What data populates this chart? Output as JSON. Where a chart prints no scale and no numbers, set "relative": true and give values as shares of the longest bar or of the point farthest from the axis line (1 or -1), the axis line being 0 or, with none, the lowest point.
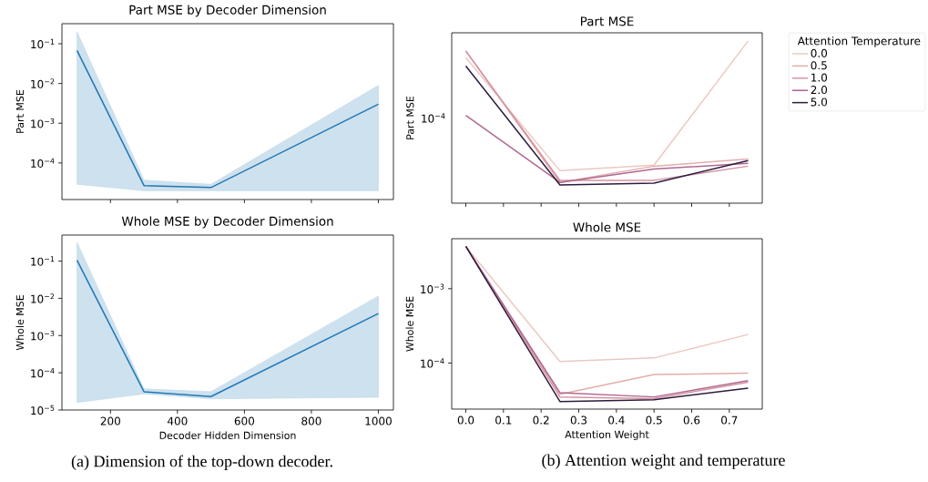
{
  "chart_data": [
    {
      "type": "line",
      "title": "Part MSE by Decoder Dimension",
      "ylabel": "Part MSE",
      "x": [
        100,
        300,
        500,
        1000
      ],
      "xlim": [
        55,
        1045
      ],
      "xticks": [
        200,
        400,
        600,
        800,
        1000
      ],
      "log": "y",
      "ylim": [
        1.2e-05,
        0.32
      ],
      "yticks": [
        {
          "value": 0.1,
          "label": "10$^{−1}$"
        },
        {
          "value": 0.01,
          "label": "10$^{−2}$"
        },
        {
          "value": 0.001,
          "label": "10$^{−3}$"
        },
        {
          "value": 0.0001,
          "label": "10$^{−4}$"
        }
      ],
      "tick_labels": "y",
      "series": [
        {
          "color": "#1f77b4",
          "values": [
            0.068,
            2.7e-05,
            2.4e-05,
            0.003
          ],
          "lower": [
            2.9e-05,
            2e-05,
            2e-05,
            2e-05
          ],
          "upper": [
            0.2,
            3.7e-05,
            2.9e-05,
            0.0089
          ]
        }
      ]
    },
    {
      "type": "line",
      "title": "Whole MSE by Decoder Dimension",
      "xlabel": "Decoder Hidden Dimension",
      "ylabel": "Whole MSE",
      "x": [
        100,
        300,
        500,
        1000
      ],
      "xlim": [
        55,
        1045
      ],
      "xticks": [
        200,
        400,
        600,
        800,
        1000
      ],
      "log": "y",
      "ylim": [
        1e-05,
        0.5
      ],
      "yticks": [
        {
          "value": 0.1,
          "label": "10$^{−1}$"
        },
        {
          "value": 0.01,
          "label": "10$^{−2}$"
        },
        {
          "value": 0.001,
          "label": "10$^{−3}$"
        },
        {
          "value": 0.0001,
          "label": "10$^{−4}$"
        },
        {
          "value": 1e-05,
          "label": "10$^{−5}$"
        }
      ],
      "annotations": [
        "(a) Dimension of the top-down decoder."
      ],
      "series": [
        {
          "color": "#1f77b4",
          "values": [
            0.105,
            3.1e-05,
            2.3e-05,
            0.0039
          ],
          "lower": [
            1.6e-05,
            2.7e-05,
            2e-05,
            2.2e-05
          ],
          "upper": [
            0.32,
            3.7e-05,
            3.1e-05,
            0.0115
          ]
        }
      ]
    },
    {
      "type": "line",
      "title": "Part MSE",
      "ylabel": "Part MSE",
      "x": [
        0,
        0.25,
        0.5,
        0.75
      ],
      "xlim": [
        -0.0375,
        0.7875
      ],
      "xticks": [
        {
          "value": 0,
          "label": null
        },
        {
          "value": 0.1,
          "label": null
        },
        {
          "value": 0.2,
          "label": null
        },
        {
          "value": 0.3,
          "label": null
        },
        {
          "value": 0.4,
          "label": null
        },
        {
          "value": 0.5,
          "label": null
        },
        {
          "value": 0.6,
          "label": null
        },
        {
          "value": 0.7,
          "label": null
        }
      ],
      "relative": true,
      "annotations": [
        "10$^{−4}$"
      ],
      "tick_labels": "y",
      "legend": "right",
      "legend_title": "Attention Temperature",
      "series": [
        {
          "name": "0.0",
          "color": "#ebc9c2",
          "values": [
            0.897,
            0.2,
            0.234,
            1
          ]
        },
        {
          "name": "0.5",
          "color": "#e2aeab",
          "values": [
            0.938,
            0.128,
            0.228,
            0.272
          ]
        },
        {
          "name": "1.0",
          "color": "#d593a3",
          "values": [
            0.938,
            0.14,
            0.141,
            0.228
          ]
        },
        {
          "name": "2.0",
          "color": "#b06891",
          "values": [
            0.541,
            0.128,
            0.21,
            0.245
          ]
        },
        {
          "name": "5.0",
          "color": "#2c1d3d",
          "values": [
            0.845,
            0.112,
            0.124,
            0.262
          ]
        }
      ]
    },
    {
      "type": "line",
      "title": "Whole MSE",
      "xlabel": "Attention Weight",
      "ylabel": "Whole MSE",
      "x": [
        0,
        0.25,
        0.5,
        0.75
      ],
      "xlim": [
        -0.0375,
        0.7875
      ],
      "xticks": [
        {
          "value": 0,
          "label": "0.0"
        },
        {
          "value": 0.1,
          "label": "0.1"
        },
        {
          "value": 0.2,
          "label": "0.2"
        },
        {
          "value": 0.3,
          "label": "0.3"
        },
        {
          "value": 0.4,
          "label": "0.4"
        },
        {
          "value": 0.5,
          "label": "0.5"
        },
        {
          "value": 0.6,
          "label": "0.6"
        },
        {
          "value": 0.7,
          "label": "0.7"
        }
      ],
      "log": "y",
      "ylim": [
        2.4e-05,
        0.0047
      ],
      "yticks": [
        {
          "value": 0.001,
          "label": "10$^{−3}$"
        },
        {
          "value": 0.0001,
          "label": "10$^{−4}$"
        }
      ],
      "annotations": [
        "(b) Attention weight and temperature"
      ],
      "series": [
        {
          "color": "#ebc9c2",
          "values": [
            0.0037,
            0.000105,
            0.000117,
            0.000242
          ]
        },
        {
          "color": "#e2aeab",
          "values": [
            0.0037,
            3.8e-05,
            7e-05,
            7.3e-05
          ]
        },
        {
          "color": "#d593a3",
          "values": [
            0.0037,
            3.5e-05,
            3.33e-05,
            5.5e-05
          ]
        },
        {
          "color": "#b06891",
          "values": [
            0.0037,
            4e-05,
            3.5e-05,
            5.8e-05
          ]
        },
        {
          "color": "#2c1d3d",
          "values": [
            0.0037,
            3.03e-05,
            3.2e-05,
            4.6e-05
          ]
        }
      ]
    }
  ]
}
